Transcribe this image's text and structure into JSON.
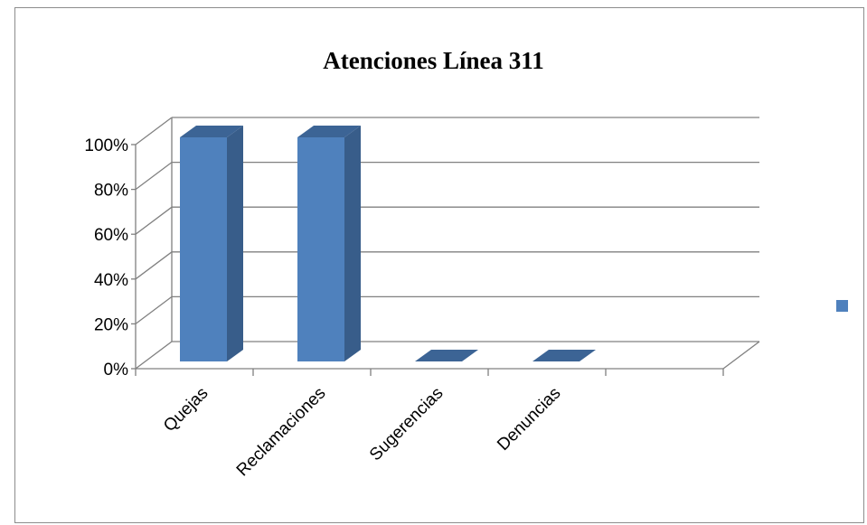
{
  "chart_data": {
    "type": "bar",
    "title": "Atenciones Línea 311",
    "categories": [
      "Quejas",
      "Reclamaciones",
      "Sugerencias",
      "Denuncias"
    ],
    "values": [
      100,
      100,
      0,
      0
    ],
    "ylim": [
      0,
      100
    ],
    "yticks": [
      "0%",
      "20%",
      "40%",
      "60%",
      "80%",
      "100%"
    ],
    "legend_position": "right",
    "grid": true,
    "colors": {
      "bar_front": "#4f81bd",
      "bar_side": "#385d8a",
      "bar_top": "#3c6495",
      "grid": "#808080",
      "legend": "#4f81bd"
    }
  }
}
